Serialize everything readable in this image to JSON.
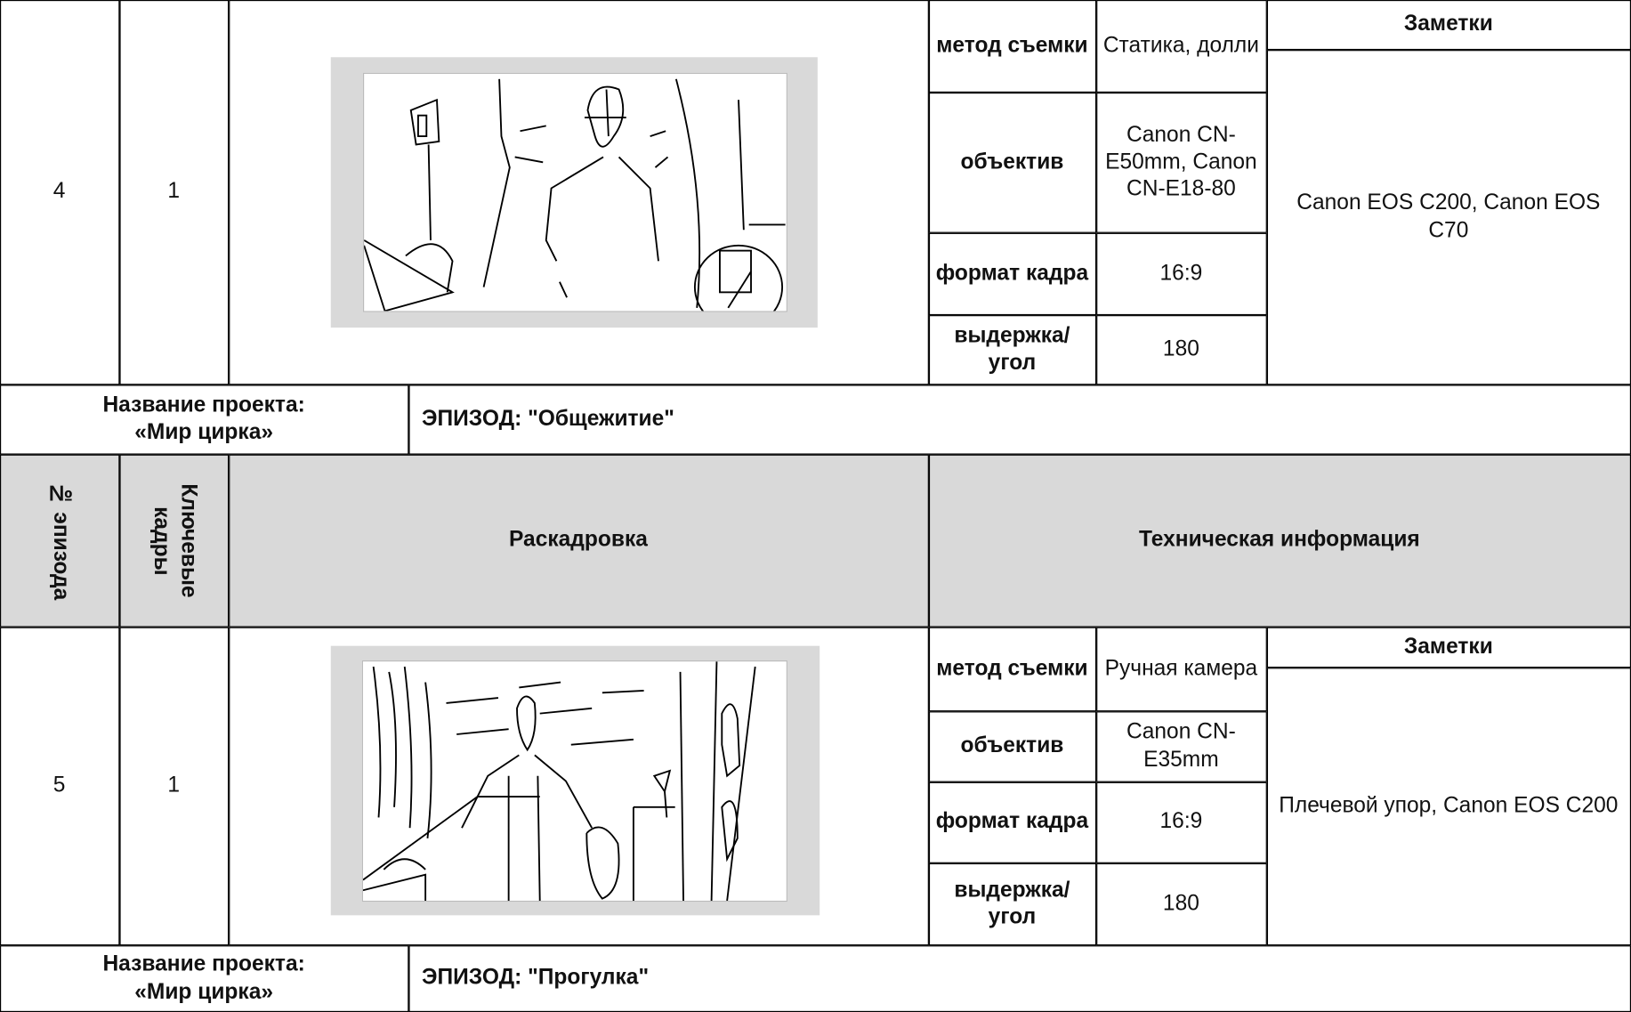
{
  "blocks": [
    {
      "episode": "4",
      "keyframes": "1",
      "tech": [
        {
          "label": "метод съемки",
          "value": "Статика, долли"
        },
        {
          "label": "объектив",
          "value": "Canon CN-E50mm, Canon CN-E18-80"
        },
        {
          "label": "формат кадра",
          "value": "16:9"
        },
        {
          "label": "выдержка/ угол",
          "value": "180"
        }
      ],
      "notes_title": "Заметки",
      "notes": "Canon EOS C200, Canon EOS C70"
    },
    {
      "episode": "5",
      "keyframes": "1",
      "tech": [
        {
          "label": "метод съемки",
          "value": "Ручная камера"
        },
        {
          "label": "объектив",
          "value": "Canon CN-E35mm"
        },
        {
          "label": "формат кадра",
          "value": "16:9"
        },
        {
          "label": "выдержка/ угол",
          "value": "180"
        }
      ],
      "notes_title": "Заметки",
      "notes": "Плечевой упор, Canon EOS C200"
    }
  ],
  "projects": [
    {
      "label": "Название проекта:",
      "name": "«Мир цирка»",
      "episode": "ЭПИЗОД: \"Общежитие\""
    },
    {
      "label": "Название проекта:",
      "name": "«Мир цирка»",
      "episode": "ЭПИЗОД: \"Прогулка\""
    }
  ],
  "header": {
    "episode_no": "№ эпизода",
    "keyframes": "Ключевые кадры",
    "storyboard": "Раскадровка",
    "tech": "Техническая информация"
  }
}
